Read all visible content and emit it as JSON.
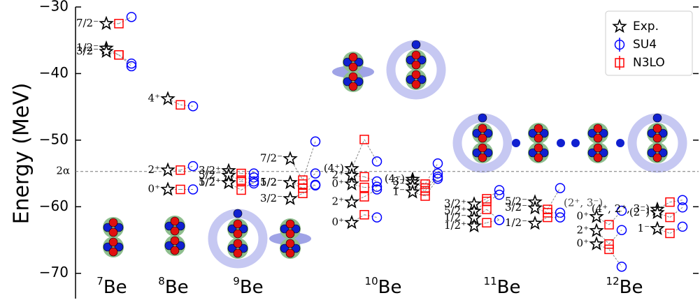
{
  "chart_data": {
    "type": "level-scheme",
    "ylabel": "Energy (MeV)",
    "ylim": [
      -73.8,
      -30
    ],
    "yticks": [
      {
        "value": -30,
        "label": "−30"
      },
      {
        "value": -40,
        "label": "−40"
      },
      {
        "value": -50,
        "label": "−50"
      },
      {
        "value": -60,
        "label": "−60"
      },
      {
        "value": -70,
        "label": "−70"
      }
    ],
    "threshold": {
      "label": "2α",
      "value": -54.7
    },
    "legend": "upper right",
    "series": [
      {
        "name": "Exp.",
        "color": "#000000"
      },
      {
        "name": "SU4",
        "color": "#0000ff"
      },
      {
        "name": "N3LO",
        "color": "#ff0000"
      }
    ],
    "nuclei": [
      {
        "mass": "7",
        "element": "Be",
        "groups": [
          {
            "levels": [
              {
                "label": "7/2⁻",
                "values": [
                  -32.5,
                  -31.5,
                  -32.5
                ]
              },
              {
                "label": "1/2⁻",
                "values": [
                  -36.2,
                  -38.5,
                  -37.2
                ]
              },
              {
                "label": "3/2⁻",
                "values": [
                  -36.7,
                  -38.9,
                  -37.2
                ]
              }
            ]
          }
        ]
      },
      {
        "mass": "8",
        "element": "Be",
        "groups": [
          {
            "levels": [
              {
                "label": "4⁺",
                "values": [
                  -43.8,
                  -44.9,
                  -44.7
                ]
              },
              {
                "label": "2⁺",
                "values": [
                  -54.5,
                  -53.9,
                  -54.5
                ]
              },
              {
                "label": "0⁺",
                "values": [
                  -57.4,
                  -57.4,
                  -57.4
                ]
              }
            ]
          }
        ]
      },
      {
        "mass": "9",
        "element": "Be",
        "groups": [
          {
            "levels": [
              {
                "label": "3/2⁺",
                "values": [
                  -54.6,
                  -55.0,
                  -55.0
                ]
              },
              {
                "label": "5/2⁻",
                "values": [
                  -55.3,
                  -55.6,
                  -56.0
                ]
              },
              {
                "label": "5/2⁺",
                "values": [
                  -56.4,
                  -56.5,
                  -56.2
                ]
              },
              {
                "label": "1/2⁺",
                "values": [
                  -56.4,
                  -56.2,
                  -57.5
                ]
              }
            ]
          },
          {
            "levels": [
              {
                "label": "7/2⁻",
                "values": [
                  -52.8,
                  -50.2,
                  -56.0
                ]
              },
              {
                "label": "1/2⁻",
                "values": [
                  -56.4,
                  -55.0,
                  -56.6
                ]
              },
              {
                "label": "5/2⁻",
                "values": [
                  -56.4,
                  -56.7,
                  -57.2
                ]
              },
              {
                "label": "3/2⁻",
                "values": [
                  -58.8,
                  -56.8,
                  -58.0
                ]
              }
            ]
          }
        ]
      },
      {
        "mass": "10",
        "element": "Be",
        "groups": [
          {
            "levels": [
              {
                "label": "(4⁺)",
                "values": [
                  -54.3,
                  -53.2,
                  -49.9
                ]
              },
              {
                "label": "2⁺",
                "values": [
                  -55.3,
                  -56.2,
                  -55.5
                ]
              },
              {
                "label": "0⁺",
                "values": [
                  -56.6,
                  -57.0,
                  -57.1
                ]
              },
              {
                "label": "2⁺",
                "values": [
                  -59.3,
                  -57.4,
                  -58.5
                ]
              },
              {
                "label": "0⁺",
                "values": [
                  -62.4,
                  -61.6,
                  -61.2
                ]
              }
            ]
          },
          {
            "levels": [
              {
                "label": "(4⁻)",
                "values": [
                  -55.9,
                  -53.5,
                  -56.6
                ]
              },
              {
                "label": "3⁻",
                "values": [
                  -56.3,
                  -55.0,
                  -57.2
                ]
              },
              {
                "label": "2⁻",
                "values": [
                  -56.9,
                  -55.5,
                  -57.6
                ]
              },
              {
                "label": "1⁻",
                "values": [
                  -57.8,
                  -55.8,
                  -58.4
                ]
              }
            ]
          }
        ]
      },
      {
        "mass": "11",
        "element": "Be",
        "groups": [
          {
            "levels": [
              {
                "label": "3/2⁺",
                "values": [
                  -59.6,
                  -57.5,
                  -58.8
                ]
              },
              {
                "label": "5/2⁺",
                "values": [
                  -60.7,
                  -58.2,
                  -59.2
                ]
              },
              {
                "label": "1/2⁻",
                "values": [
                  -61.7,
                  -62.0,
                  -60.4
                ]
              },
              {
                "label": "1/2⁺",
                "values": [
                  -62.9,
                  -62.0,
                  -62.4
                ]
              }
            ]
          },
          {
            "levels": [
              {
                "label": "5/2⁻",
                "values": [
                  -59.3,
                  -57.2,
                  -60.4
                ]
              },
              {
                "label": "3/2⁻",
                "values": [
                  -60.2,
                  -60.9,
                  -60.9
                ]
              },
              {
                "label": "1/2⁻",
                "values": [
                  -62.5,
                  -61.6,
                  -61.6
                ]
              }
            ]
          }
        ]
      },
      {
        "mass": "12",
        "element": "Be",
        "groups": [
          {
            "levels": [
              {
                "label": "0⁺",
                "values": [
                  -61.5,
                  -60.6,
                  -62.7
                ]
              },
              {
                "label": "2⁺",
                "values": [
                  -63.6,
                  -63.5,
                  -65.6
                ]
              },
              {
                "label": "0⁺",
                "values": [
                  -65.6,
                  -69.0,
                  -66.4
                ]
              }
            ]
          },
          {
            "levels": [
              {
                "label": "(4⁺, 2⁺, 3⁻)",
                "values": [
                  -60.4,
                  -59.0,
                  -59.3
                ]
              },
              {
                "label": "(2⁻)",
                "values": [
                  -60.9,
                  -60.1,
                  -61.6
                ]
              },
              {
                "label": "1⁻",
                "values": [
                  -63.3,
                  -63.0,
                  -64.0
                ]
              }
            ]
          }
        ]
      }
    ],
    "annotations": [
      {
        "text": "(2⁺, 3⁻)",
        "y": -59.5
      }
    ]
  }
}
